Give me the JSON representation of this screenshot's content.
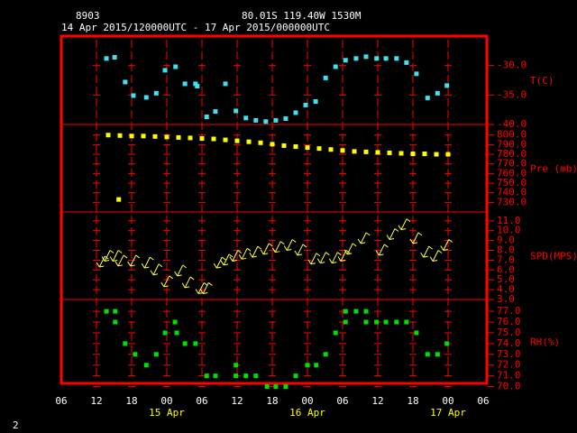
{
  "header": {
    "station": "8903",
    "location": "80.01S  119.40W  1530M",
    "period": "14 Apr 2015/120000UTC - 17 Apr 2015/000000UTC",
    "page_number": "2"
  },
  "x_axis": {
    "xlim": [
      6,
      78
    ],
    "xticks": [
      {
        "value": 6,
        "label": "06"
      },
      12,
      18,
      {
        "value": 24,
        "label": "00"
      },
      {
        "value": 30,
        "label": "06"
      },
      {
        "value": 36,
        "label": "12"
      },
      {
        "value": 42,
        "label": "18"
      },
      {
        "value": 48,
        "label": "00"
      },
      {
        "value": 54,
        "label": "06"
      },
      {
        "value": 60,
        "label": "12"
      },
      {
        "value": 66,
        "label": "18"
      },
      {
        "value": 72,
        "label": "00"
      },
      {
        "value": 78,
        "label": "06"
      }
    ],
    "date_labels": [
      {
        "value": 24,
        "label": "15 Apr"
      },
      {
        "value": 48,
        "label": "16 Apr"
      },
      {
        "value": 72,
        "label": "17 Apr"
      }
    ]
  },
  "chart_data": [
    {
      "type": "scatter",
      "marker": "square",
      "y_label": "T(C)",
      "color": "#40e0f0",
      "x": [
        13.7,
        15.1,
        16.9,
        18.3,
        20.5,
        22.2,
        23.7,
        25.5,
        27.1,
        28.9,
        29.2,
        30.8,
        32.3,
        34.0,
        35.8,
        37.5,
        39.2,
        40.9,
        42.6,
        44.3,
        46.0,
        47.7,
        49.4,
        51.1,
        52.8,
        54.5,
        56.3,
        58.0,
        59.8,
        61.4,
        63.2,
        64.9,
        66.6,
        68.5,
        70.2,
        71.8
      ],
      "values": [
        -28.8,
        -28.6,
        -32.8,
        -35.1,
        -35.4,
        -34.7,
        -30.8,
        -30.2,
        -33.1,
        -33.1,
        -33.5,
        -38.7,
        -37.8,
        -33.1,
        -37.7,
        -38.9,
        -39.3,
        -39.5,
        -39.3,
        -39.0,
        -38.0,
        -36.7,
        -36.1,
        -32.1,
        -30.2,
        -29.1,
        -28.8,
        -28.5,
        -28.8,
        -28.8,
        -28.8,
        -29.5,
        -31.4,
        -35.5,
        -34.7,
        -33.4
      ],
      "ylim": [
        -40,
        -25
      ],
      "yticks": [
        {
          "value": -40,
          "label": "-40.0"
        },
        {
          "value": -35,
          "label": "-35.0"
        },
        {
          "value": -30,
          "label": "-30.0"
        }
      ]
    },
    {
      "type": "scatter",
      "marker": "square",
      "y_label": "Pre (mb)",
      "color": "#ffff00",
      "x": [
        14,
        16,
        18,
        20,
        22,
        24,
        26,
        28,
        30,
        32,
        34,
        36,
        38,
        40,
        42,
        44,
        46,
        48,
        50,
        52,
        54,
        56,
        58,
        60,
        62,
        64,
        66,
        68,
        70,
        72,
        15.8
      ],
      "values": [
        800,
        799.5,
        799,
        799,
        798.5,
        798,
        797.5,
        797,
        796.5,
        796,
        795,
        794,
        793,
        792,
        790.5,
        789,
        788,
        787,
        786,
        785,
        784,
        783,
        782.5,
        782,
        781.5,
        781,
        780.5,
        780.5,
        780,
        780,
        733
      ],
      "ylim": [
        720,
        811
      ],
      "yticks": [
        {
          "value": 730,
          "label": "730.0"
        },
        {
          "value": 740,
          "label": "740.0"
        },
        {
          "value": 750,
          "label": "750.0"
        },
        {
          "value": 760,
          "label": "760.0"
        },
        {
          "value": 770,
          "label": "770.0"
        },
        {
          "value": 780,
          "label": "780.0"
        },
        {
          "value": 790,
          "label": "790.0"
        },
        {
          "value": 800,
          "label": "800.0"
        }
      ]
    },
    {
      "type": "scatter",
      "marker": "barb",
      "y_label": "SPD(MPS)",
      "color": "#ffff40",
      "x": [
        12.5,
        13.4,
        14.8,
        15.7,
        17.8,
        20.2,
        21.7,
        23.5,
        25.8,
        27.1,
        29.4,
        30.2,
        32.5,
        33.7,
        35.2,
        36.8,
        38.6,
        40.5,
        42.5,
        44.5,
        46.3,
        48.6,
        50.2,
        52.2,
        53.7,
        54.8,
        57.1,
        60.2,
        62.0,
        64.0,
        66.0,
        67.8,
        69.4,
        71.2
      ],
      "values": [
        6.3,
        6.9,
        6.9,
        6.4,
        6.4,
        6.2,
        5.5,
        4.3,
        5.4,
        4.2,
        3.6,
        3.6,
        6.2,
        6.5,
        6.9,
        7.1,
        7.3,
        7.6,
        7.8,
        8.0,
        7.5,
        6.6,
        6.7,
        6.7,
        6.9,
        7.6,
        8.7,
        7.5,
        9.1,
        10.1,
        8.7,
        7.3,
        6.9,
        8.0
      ],
      "ylim": [
        3,
        11.9
      ],
      "yticks": [
        {
          "value": 3,
          "label": "3.0"
        },
        {
          "value": 4,
          "label": "4.0"
        },
        {
          "value": 5,
          "label": "5.0"
        },
        {
          "value": 6,
          "label": "6.0"
        },
        {
          "value": 7,
          "label": "7.0"
        },
        {
          "value": 8,
          "label": "8.0"
        },
        {
          "value": 9,
          "label": "9.0"
        },
        {
          "value": 10,
          "label": "10.0"
        },
        {
          "value": 11,
          "label": "11.0"
        }
      ]
    },
    {
      "type": "scatter",
      "marker": "square",
      "y_label": "RH(%)",
      "color": "#00e000",
      "x": [
        13.7,
        15.2,
        15.2,
        16.9,
        18.6,
        20.5,
        22.2,
        23.7,
        25.4,
        25.7,
        27.1,
        28.9,
        30.8,
        32.3,
        35.8,
        35.8,
        37.5,
        39.2,
        41.1,
        42.6,
        44.3,
        46.0,
        48.0,
        49.5,
        51.1,
        52.8,
        54.5,
        54.5,
        56.3,
        58.0,
        58.0,
        59.8,
        61.4,
        63.2,
        64.9,
        66.6,
        68.5,
        70.2,
        71.8
      ],
      "values": [
        77,
        77,
        76,
        74,
        73,
        72,
        73,
        75,
        76,
        75,
        74,
        74,
        71,
        71,
        72,
        71,
        71,
        71,
        70,
        70,
        70,
        71,
        72,
        72,
        73,
        75,
        77,
        76,
        77,
        77,
        76,
        76,
        76,
        76,
        76,
        75,
        73,
        73,
        74
      ],
      "ylim": [
        70.3,
        78.1
      ],
      "yticks": [
        {
          "value": 70,
          "label": "70.0"
        },
        {
          "value": 71,
          "label": "71.0"
        },
        {
          "value": 72,
          "label": "72.0"
        },
        {
          "value": 73,
          "label": "73.0"
        },
        {
          "value": 74,
          "label": "74.0"
        },
        {
          "value": 75,
          "label": "75.0"
        },
        {
          "value": 76,
          "label": "76.0"
        },
        {
          "value": 77,
          "label": "77.0"
        }
      ]
    }
  ]
}
